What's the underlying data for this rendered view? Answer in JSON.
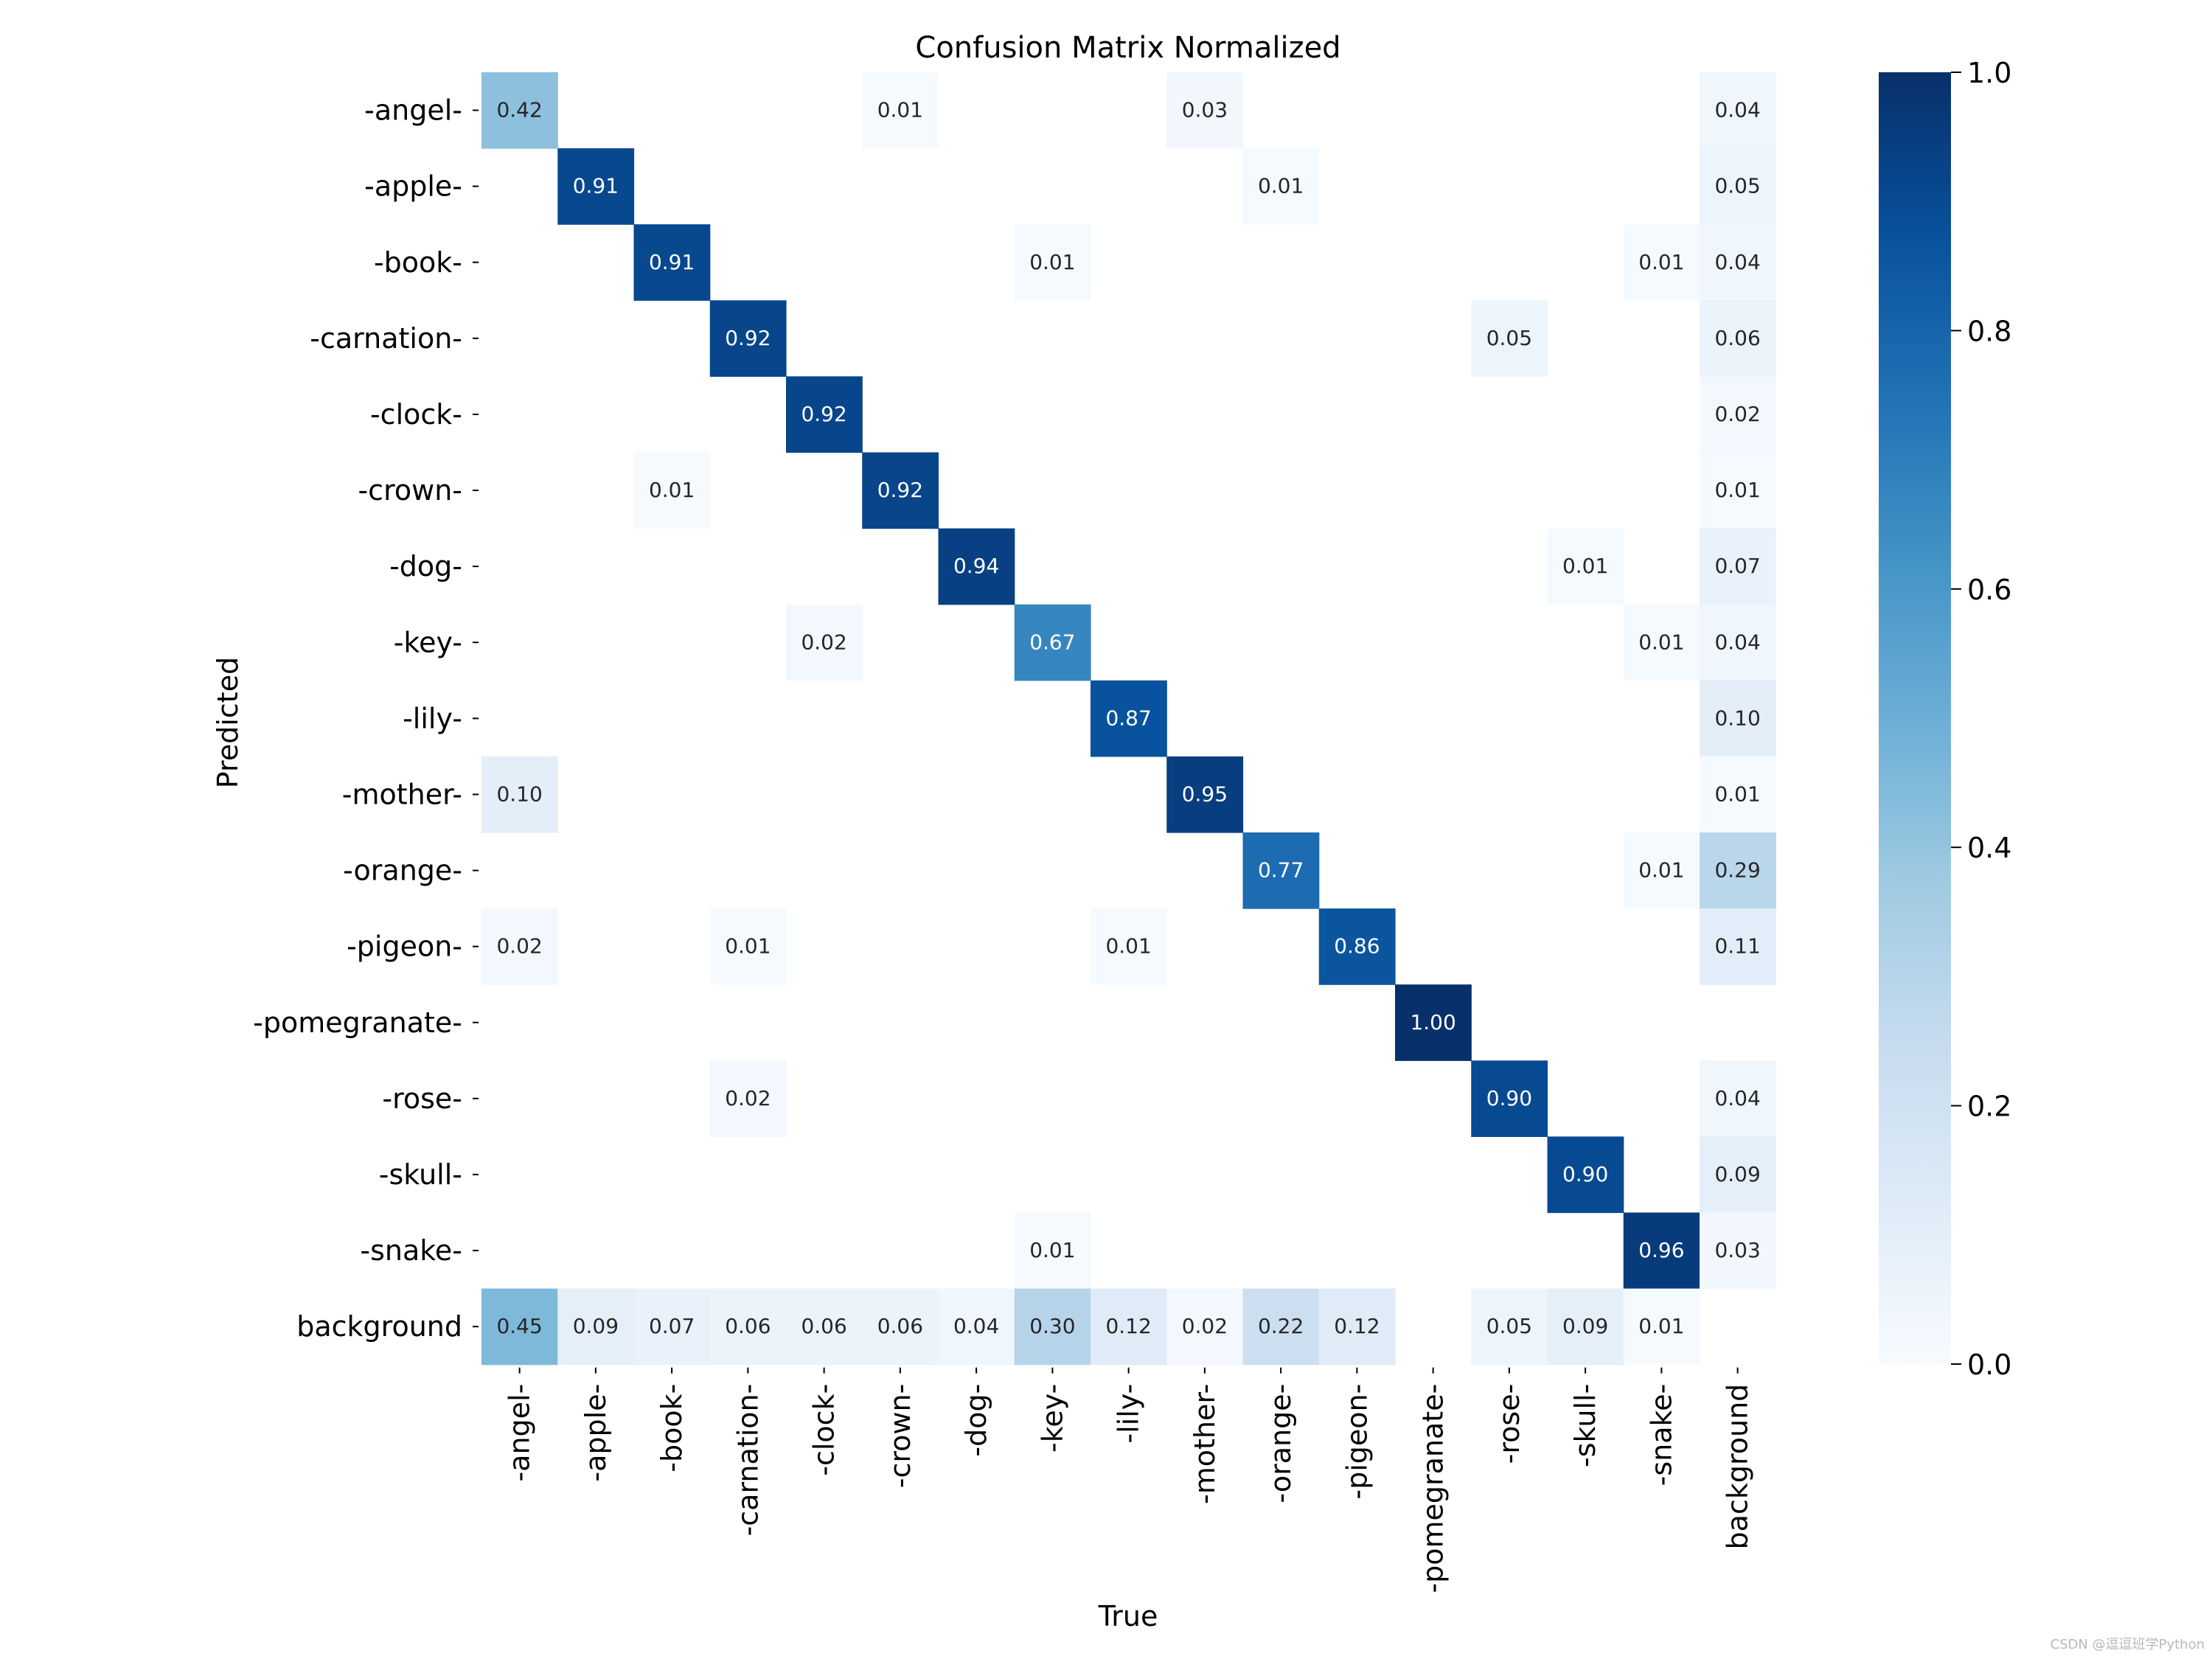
{
  "chart_data": {
    "type": "heatmap",
    "title": "Confusion Matrix Normalized",
    "xlabel": "True",
    "ylabel": "Predicted",
    "x_categories": [
      "-angel-",
      "-apple-",
      "-book-",
      "-carnation-",
      "-clock-",
      "-crown-",
      "-dog-",
      "-key-",
      "-lily-",
      "-mother-",
      "-orange-",
      "-pigeon-",
      "-pomegranate-",
      "-rose-",
      "-skull-",
      "-snake-",
      "background"
    ],
    "y_categories": [
      "-angel-",
      "-apple-",
      "-book-",
      "-carnation-",
      "-clock-",
      "-crown-",
      "-dog-",
      "-key-",
      "-lily-",
      "-mother-",
      "-orange-",
      "-pigeon-",
      "-pomegranate-",
      "-rose-",
      "-skull-",
      "-snake-",
      "background"
    ],
    "values": [
      [
        0.42,
        null,
        null,
        null,
        null,
        0.01,
        null,
        null,
        null,
        0.03,
        null,
        null,
        null,
        null,
        null,
        null,
        0.04
      ],
      [
        null,
        0.91,
        null,
        null,
        null,
        null,
        null,
        null,
        null,
        null,
        0.01,
        null,
        null,
        null,
        null,
        null,
        0.05
      ],
      [
        null,
        null,
        0.91,
        null,
        null,
        null,
        null,
        0.01,
        null,
        null,
        null,
        null,
        null,
        null,
        null,
        0.01,
        0.04
      ],
      [
        null,
        null,
        null,
        0.92,
        null,
        null,
        null,
        null,
        null,
        null,
        null,
        null,
        null,
        0.05,
        null,
        null,
        0.06
      ],
      [
        null,
        null,
        null,
        null,
        0.92,
        null,
        null,
        null,
        null,
        null,
        null,
        null,
        null,
        null,
        null,
        null,
        0.02
      ],
      [
        null,
        null,
        0.01,
        null,
        null,
        0.92,
        null,
        null,
        null,
        null,
        null,
        null,
        null,
        null,
        null,
        null,
        0.01
      ],
      [
        null,
        null,
        null,
        null,
        null,
        null,
        0.94,
        null,
        null,
        null,
        null,
        null,
        null,
        null,
        0.01,
        null,
        0.07
      ],
      [
        null,
        null,
        null,
        null,
        0.02,
        null,
        null,
        0.67,
        null,
        null,
        null,
        null,
        null,
        null,
        null,
        0.01,
        0.04
      ],
      [
        null,
        null,
        null,
        null,
        null,
        null,
        null,
        null,
        0.87,
        null,
        null,
        null,
        null,
        null,
        null,
        null,
        0.1
      ],
      [
        0.1,
        null,
        null,
        null,
        null,
        null,
        null,
        null,
        null,
        0.95,
        null,
        null,
        null,
        null,
        null,
        null,
        0.01
      ],
      [
        null,
        null,
        null,
        null,
        null,
        null,
        null,
        null,
        null,
        null,
        0.77,
        null,
        null,
        null,
        null,
        0.01,
        0.29
      ],
      [
        0.02,
        null,
        null,
        0.01,
        null,
        null,
        null,
        null,
        0.01,
        null,
        null,
        0.86,
        null,
        null,
        null,
        null,
        0.11
      ],
      [
        null,
        null,
        null,
        null,
        null,
        null,
        null,
        null,
        null,
        null,
        null,
        null,
        1.0,
        null,
        null,
        null,
        null
      ],
      [
        null,
        null,
        null,
        0.02,
        null,
        null,
        null,
        null,
        null,
        null,
        null,
        null,
        null,
        0.9,
        null,
        null,
        0.04
      ],
      [
        null,
        null,
        null,
        null,
        null,
        null,
        null,
        null,
        null,
        null,
        null,
        null,
        null,
        null,
        0.9,
        null,
        0.09
      ],
      [
        null,
        null,
        null,
        null,
        null,
        null,
        null,
        0.01,
        null,
        null,
        null,
        null,
        null,
        null,
        null,
        0.96,
        0.03
      ],
      [
        0.45,
        0.09,
        0.07,
        0.06,
        0.06,
        0.06,
        0.04,
        0.3,
        0.12,
        0.02,
        0.22,
        0.12,
        null,
        0.05,
        0.09,
        0.01,
        null
      ]
    ],
    "value_format": "2 decimals",
    "colormap": "Blues",
    "vmin": 0.0,
    "vmax": 1.0,
    "colorbar_ticks": [
      "0.0",
      "0.2",
      "0.4",
      "0.6",
      "0.8",
      "1.0"
    ],
    "grid": false
  },
  "watermark": "CSDN @逗逗班学Python"
}
